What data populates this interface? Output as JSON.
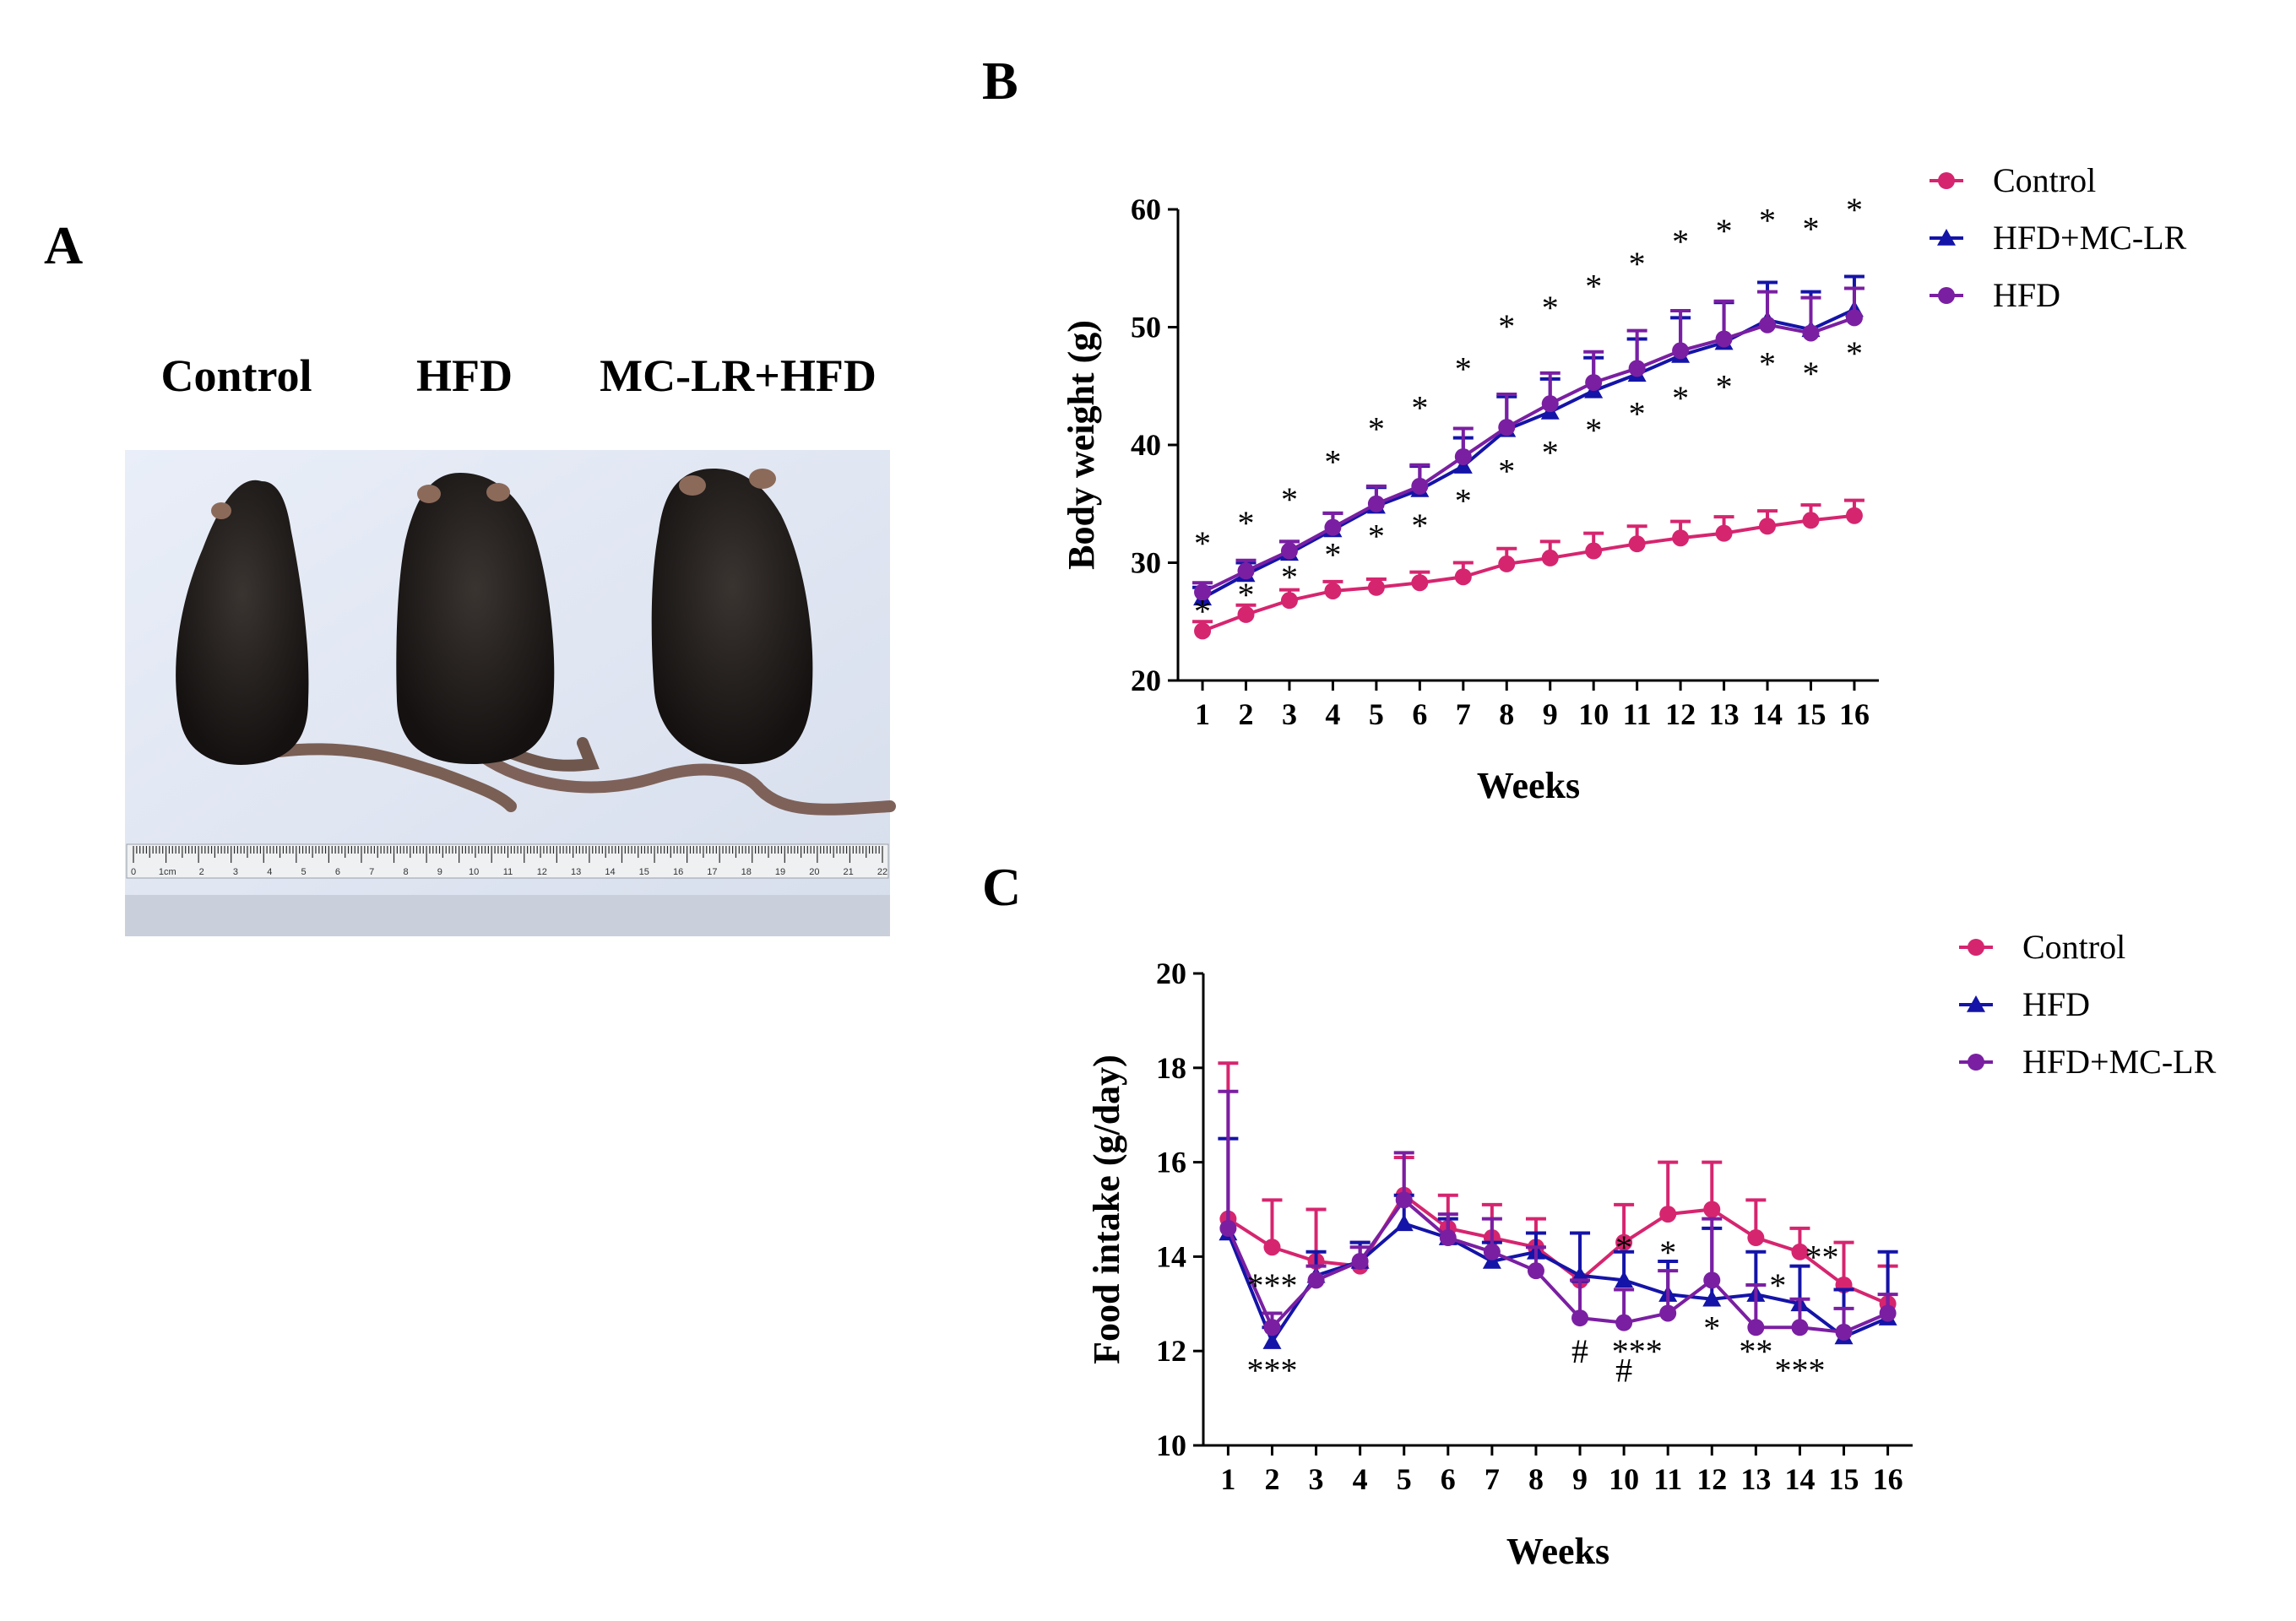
{
  "figure": {
    "panel_a": {
      "letter": "A",
      "labels": [
        "Control",
        "HFD",
        "MC-LR+HFD"
      ],
      "ruler_numbers": [
        "0",
        "1cm",
        "2",
        "3",
        "4",
        "5",
        "6",
        "7",
        "8",
        "9",
        "10",
        "11",
        "12",
        "13",
        "14",
        "15",
        "16",
        "17",
        "18",
        "19",
        "20",
        "21",
        "22"
      ]
    },
    "panel_b": {
      "letter": "B"
    },
    "panel_c": {
      "letter": "C"
    }
  },
  "colors": {
    "control": "#d6256f",
    "hfd_mclr_blue": "#1414a8",
    "purple": "#7a1fa2",
    "axis": "#000000"
  },
  "chart_data": [
    {
      "id": "body_weight",
      "type": "line",
      "xlabel": "Weeks",
      "ylabel": "Body weight (g)",
      "ylim": [
        20,
        60
      ],
      "yticks": [
        20,
        30,
        40,
        50,
        60
      ],
      "x": [
        1,
        2,
        3,
        4,
        5,
        6,
        7,
        8,
        9,
        10,
        11,
        12,
        13,
        14,
        15,
        16
      ],
      "legend": [
        "Control",
        "HFD+MC-LR",
        "HFD"
      ],
      "series": [
        {
          "name": "Control",
          "color": "control",
          "marker": "circle",
          "values": [
            24.2,
            25.6,
            26.8,
            27.6,
            27.9,
            28.3,
            28.8,
            29.9,
            30.4,
            31.0,
            31.6,
            32.1,
            32.5,
            33.1,
            33.6,
            34.0
          ],
          "errors": [
            0.8,
            0.8,
            0.9,
            0.8,
            0.7,
            0.9,
            1.2,
            1.3,
            1.4,
            1.5,
            1.5,
            1.4,
            1.4,
            1.3,
            1.3,
            1.3
          ]
        },
        {
          "name": "HFD+MC-LR",
          "color": "hfd_mclr_blue",
          "marker": "triangle",
          "values": [
            27.0,
            29.0,
            30.8,
            32.8,
            34.8,
            36.2,
            38.2,
            41.3,
            42.8,
            44.6,
            46.0,
            47.6,
            48.7,
            50.6,
            49.8,
            51.5
          ],
          "errors": [
            0.9,
            1.0,
            1.0,
            1.4,
            1.6,
            2.0,
            2.4,
            2.8,
            2.8,
            2.8,
            3.0,
            3.2,
            3.4,
            3.2,
            3.2,
            2.8
          ]
        },
        {
          "name": "HFD",
          "color": "purple",
          "marker": "circle",
          "values": [
            27.5,
            29.3,
            31.0,
            33.0,
            35.0,
            36.5,
            39.0,
            41.5,
            43.5,
            45.3,
            46.5,
            48.0,
            49.0,
            50.2,
            49.5,
            50.8
          ],
          "errors": [
            0.8,
            0.9,
            0.8,
            1.2,
            1.5,
            1.8,
            2.4,
            2.8,
            2.6,
            2.6,
            3.2,
            3.4,
            3.2,
            2.8,
            3.0,
            2.5
          ]
        }
      ],
      "annotations": [
        {
          "x": 1,
          "y": 31.7,
          "text": "*"
        },
        {
          "x": 1,
          "y": 25.9,
          "text": "*"
        },
        {
          "x": 2,
          "y": 33.4,
          "text": "*"
        },
        {
          "x": 2,
          "y": 27.3,
          "text": "*"
        },
        {
          "x": 3,
          "y": 35.4,
          "text": "*"
        },
        {
          "x": 3,
          "y": 28.8,
          "text": "*"
        },
        {
          "x": 4,
          "y": 38.6,
          "text": "*"
        },
        {
          "x": 4,
          "y": 30.7,
          "text": "*"
        },
        {
          "x": 5,
          "y": 41.4,
          "text": "*"
        },
        {
          "x": 5,
          "y": 32.3,
          "text": "*"
        },
        {
          "x": 6,
          "y": 43.2,
          "text": "*"
        },
        {
          "x": 6,
          "y": 33.2,
          "text": "*"
        },
        {
          "x": 7,
          "y": 46.5,
          "text": "*"
        },
        {
          "x": 7,
          "y": 35.3,
          "text": "*"
        },
        {
          "x": 8,
          "y": 50.1,
          "text": "*"
        },
        {
          "x": 8,
          "y": 37.8,
          "text": "*"
        },
        {
          "x": 9,
          "y": 51.7,
          "text": "*"
        },
        {
          "x": 9,
          "y": 39.4,
          "text": "*"
        },
        {
          "x": 10,
          "y": 53.5,
          "text": "*"
        },
        {
          "x": 10,
          "y": 41.3,
          "text": "*"
        },
        {
          "x": 11,
          "y": 55.4,
          "text": "*"
        },
        {
          "x": 11,
          "y": 42.7,
          "text": "*"
        },
        {
          "x": 12,
          "y": 57.3,
          "text": "*"
        },
        {
          "x": 12,
          "y": 44.0,
          "text": "*"
        },
        {
          "x": 13,
          "y": 58.2,
          "text": "*"
        },
        {
          "x": 13,
          "y": 45.0,
          "text": "*"
        },
        {
          "x": 14,
          "y": 59.1,
          "text": "*"
        },
        {
          "x": 14,
          "y": 46.9,
          "text": "*"
        },
        {
          "x": 15,
          "y": 58.4,
          "text": "*"
        },
        {
          "x": 15,
          "y": 46.1,
          "text": "*"
        },
        {
          "x": 16,
          "y": 60.0,
          "text": "*"
        },
        {
          "x": 16,
          "y": 47.8,
          "text": "*"
        }
      ]
    },
    {
      "id": "food_intake",
      "type": "line",
      "xlabel": "Weeks",
      "ylabel": "Food intake (g/day)",
      "ylim": [
        10,
        20
      ],
      "yticks": [
        10,
        12,
        14,
        16,
        18,
        20
      ],
      "x": [
        1,
        2,
        3,
        4,
        5,
        6,
        7,
        8,
        9,
        10,
        11,
        12,
        13,
        14,
        15,
        16
      ],
      "legend": [
        "Control",
        "HFD",
        "HFD+MC-LR"
      ],
      "series": [
        {
          "name": "Control",
          "color": "control",
          "marker": "circle",
          "values": [
            14.8,
            14.2,
            13.9,
            13.8,
            15.3,
            14.6,
            14.4,
            14.2,
            13.5,
            14.3,
            14.9,
            15.0,
            14.4,
            14.1,
            13.4,
            13.0
          ],
          "errors": [
            3.3,
            1.0,
            1.1,
            0.5,
            0.8,
            0.7,
            0.7,
            0.6,
            1.0,
            0.8,
            1.1,
            1.0,
            0.8,
            0.5,
            0.9,
            0.8
          ]
        },
        {
          "name": "HFD",
          "color": "hfd_mclr_blue",
          "marker": "triangle",
          "values": [
            14.5,
            12.2,
            13.6,
            13.9,
            14.7,
            14.4,
            13.9,
            14.1,
            13.6,
            13.5,
            13.2,
            13.1,
            13.2,
            13.0,
            12.3,
            12.7
          ],
          "errors": [
            2.0,
            0.3,
            0.5,
            0.4,
            0.6,
            0.4,
            0.4,
            0.4,
            0.9,
            0.6,
            0.7,
            1.5,
            0.9,
            0.8,
            1.0,
            1.4
          ]
        },
        {
          "name": "HFD+MC-LR",
          "color": "purple",
          "marker": "circle",
          "values": [
            14.6,
            12.5,
            13.5,
            13.9,
            15.2,
            14.4,
            14.1,
            13.7,
            12.7,
            12.6,
            12.8,
            13.5,
            12.5,
            12.5,
            12.4,
            12.8
          ],
          "errors": [
            2.9,
            0.3,
            0.3,
            0.3,
            1.0,
            0.5,
            0.7,
            0.5,
            0.8,
            0.7,
            0.9,
            1.3,
            0.9,
            0.6,
            0.5,
            0.4
          ]
        }
      ],
      "annotations": [
        {
          "x": 2,
          "y": 13.4,
          "text": "***"
        },
        {
          "x": 2,
          "y": 11.6,
          "text": "***"
        },
        {
          "x": 9,
          "y": 12.0,
          "text": "#"
        },
        {
          "x": 10,
          "y": 11.6,
          "text": "#"
        },
        {
          "x": 10,
          "y": 14.2,
          "text": "*"
        },
        {
          "x": 11,
          "y": 14.1,
          "text": "*"
        },
        {
          "x": 10.3,
          "y": 12.0,
          "text": "***"
        },
        {
          "x": 12,
          "y": 12.5,
          "text": "*"
        },
        {
          "x": 13,
          "y": 12.0,
          "text": "**"
        },
        {
          "x": 13.5,
          "y": 13.4,
          "text": "*"
        },
        {
          "x": 14,
          "y": 11.6,
          "text": "***"
        },
        {
          "x": 14.5,
          "y": 14.0,
          "text": "**"
        }
      ]
    }
  ]
}
